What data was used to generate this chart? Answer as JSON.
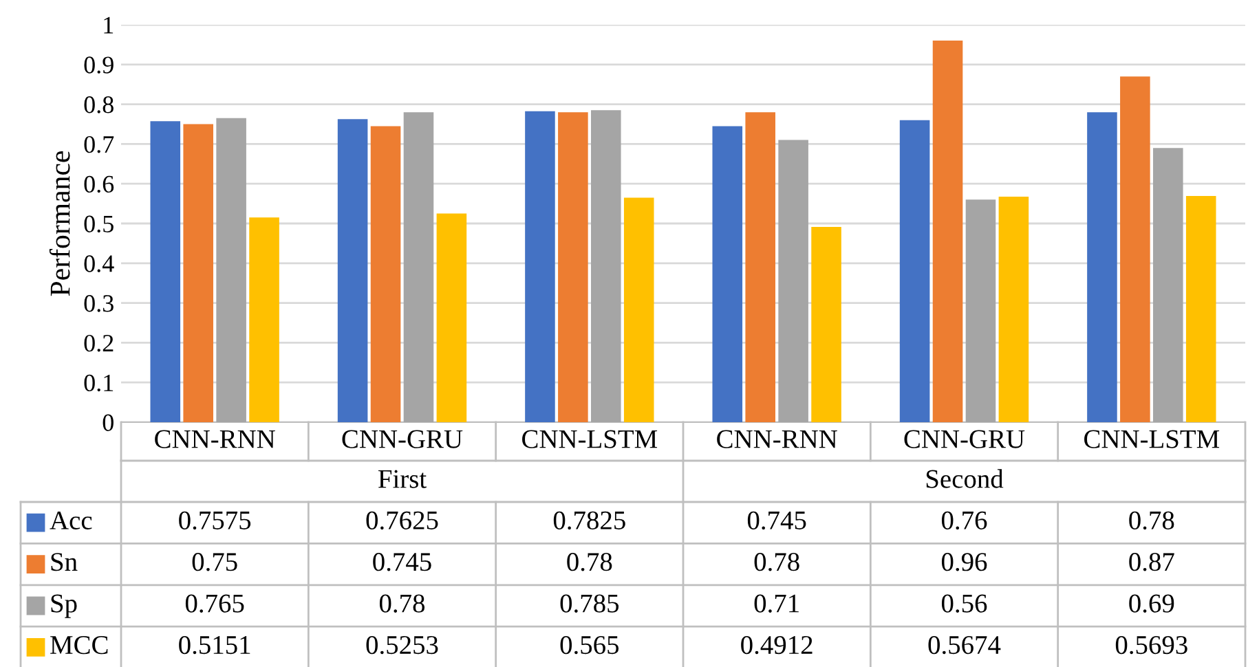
{
  "chart_data": {
    "type": "bar",
    "categories": [
      "CNN-RNN",
      "CNN-GRU",
      "CNN-LSTM",
      "CNN-RNN",
      "CNN-GRU",
      "CNN-LSTM"
    ],
    "annotations": [
      "First",
      "Second"
    ],
    "ylabel": "Performance",
    "series": [
      {
        "name": "Acc",
        "color": "#4472c4",
        "values": [
          0.7575,
          0.7625,
          0.7825,
          0.745,
          0.76,
          0.78
        ]
      },
      {
        "name": "Sn",
        "color": "#ed7d31",
        "values": [
          0.75,
          0.745,
          0.78,
          0.78,
          0.96,
          0.87
        ]
      },
      {
        "name": "Sp",
        "color": "#a5a5a5",
        "values": [
          0.765,
          0.78,
          0.785,
          0.71,
          0.56,
          0.69
        ]
      },
      {
        "name": "MCC",
        "color": "#ffc000",
        "values": [
          0.5151,
          0.5253,
          0.565,
          0.4912,
          0.5674,
          0.5693
        ]
      }
    ],
    "ylim": [
      0,
      1
    ],
    "yticks": [
      0,
      {
        "value": 0.1,
        "label": "0.1"
      },
      {
        "value": 0.2,
        "label": "0.2"
      },
      {
        "value": 0.3,
        "label": "0.3"
      },
      {
        "value": 0.4,
        "label": "0.4"
      },
      {
        "value": 0.5,
        "label": "0.5"
      },
      {
        "value": 0.6,
        "label": "0.6"
      },
      {
        "value": 0.7,
        "label": "0.7"
      },
      {
        "value": 0.8,
        "label": "0.8"
      },
      {
        "value": 0.9,
        "label": "0.9"
      },
      1
    ],
    "grid": "y",
    "legend": "bottom left",
    "data_labels": true
  }
}
